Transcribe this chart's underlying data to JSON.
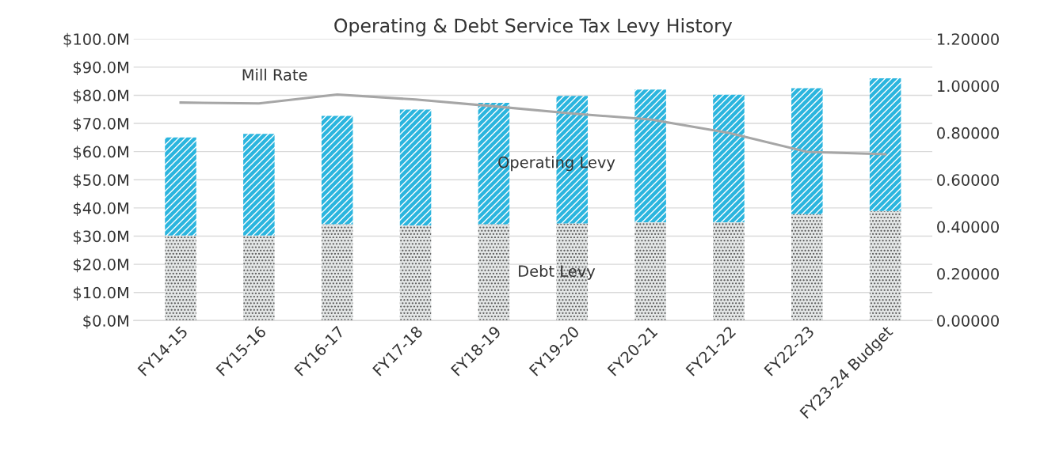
{
  "chart_data": {
    "type": "bar",
    "title": "Operating & Debt Service Tax Levy History",
    "stacked": true,
    "grid": "y",
    "legend": false,
    "categories": [
      "FY14-15",
      "FY15-16",
      "FY16-17",
      "FY17-18",
      "FY18-19",
      "FY19-20",
      "FY20-21",
      "FY21-22",
      "FY22-23",
      "FY23-24 Budget"
    ],
    "series": [
      {
        "name": "Debt Levy",
        "color": "#e3e6e6",
        "values": [
          30.2,
          30.2,
          34.2,
          33.8,
          34.2,
          34.5,
          34.9,
          34.9,
          37.8,
          38.9
        ]
      },
      {
        "name": "Operating Levy",
        "color": "#2bb5de",
        "values": [
          34.8,
          36.1,
          38.5,
          41.1,
          43.1,
          45.3,
          47.1,
          45.3,
          44.7,
          47.1
        ]
      },
      {
        "name": "Mill Rate",
        "type": "line",
        "axis": "y2",
        "color": "#a6a6a6",
        "values": [
          0.929,
          0.925,
          0.963,
          0.942,
          0.913,
          0.882,
          0.857,
          0.8,
          0.719,
          0.709
        ]
      }
    ],
    "ylim": [
      0,
      100
    ],
    "yticks": [
      {
        "value": 0,
        "label": "$0.0M"
      },
      {
        "value": 10,
        "label": "$10.0M"
      },
      {
        "value": 20,
        "label": "$20.0M"
      },
      {
        "value": 30,
        "label": "$30.0M"
      },
      {
        "value": 40,
        "label": "$40.0M"
      },
      {
        "value": 50,
        "label": "$50.0M"
      },
      {
        "value": 60,
        "label": "$60.0M"
      },
      {
        "value": 70,
        "label": "$70.0M"
      },
      {
        "value": 80,
        "label": "$80.0M"
      },
      {
        "value": 90,
        "label": "$90.0M"
      },
      {
        "value": 100,
        "label": "$100.0M"
      }
    ],
    "y2lim": [
      0,
      1.2
    ],
    "y2ticks": [
      {
        "value": 0,
        "label": "0.00000"
      },
      {
        "value": 0.2,
        "label": "0.20000"
      },
      {
        "value": 0.4,
        "label": "0.40000"
      },
      {
        "value": 0.6,
        "label": "0.60000"
      },
      {
        "value": 0.8,
        "label": "0.80000"
      },
      {
        "value": 1.0,
        "label": "1.00000"
      },
      {
        "value": 1.2,
        "label": "1.20000"
      }
    ]
  }
}
